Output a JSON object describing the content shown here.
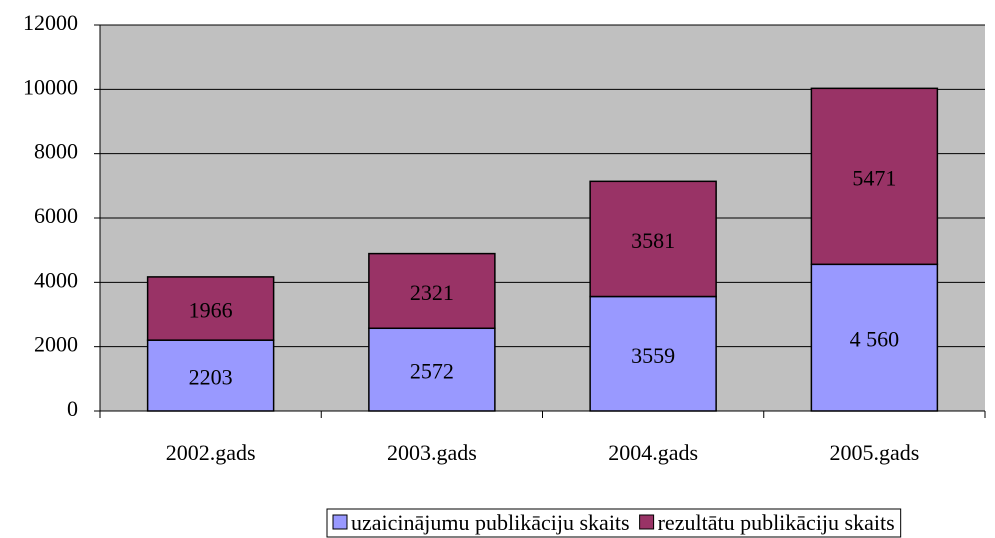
{
  "chart_data": {
    "type": "bar",
    "stacked": true,
    "categories": [
      "2002.gads",
      "2003.gads",
      "2004.gads",
      "2005.gads"
    ],
    "series": [
      {
        "name": "uzaicinājumu publikāciju skaits",
        "color": "#9999ff",
        "values": [
          2203,
          2572,
          3559,
          4560
        ],
        "value_labels": [
          "2203",
          "2572",
          "3559",
          "4 560"
        ]
      },
      {
        "name": "rezultātu publikāciju skaits",
        "color": "#993366",
        "values": [
          1966,
          2321,
          3581,
          5471
        ]
      }
    ],
    "ylim": [
      0,
      12000
    ],
    "yticks": [
      0,
      2000,
      4000,
      6000,
      8000,
      10000,
      12000
    ],
    "grid": true,
    "plot_background": "#c0c0c0",
    "legend": "bottom"
  }
}
